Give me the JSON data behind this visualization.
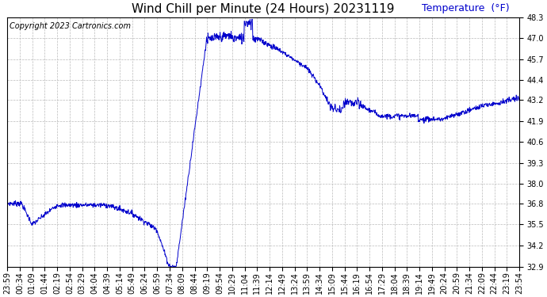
{
  "title": "Wind Chill per Minute (24 Hours) 20231119",
  "ylabel": "Temperature  (°F)",
  "copyright": "Copyright 2023 Cartronics.com",
  "line_color": "#0000cc",
  "bg_color": "#ffffff",
  "grid_color": "#bbbbbb",
  "ylim_min": 32.9,
  "ylim_max": 48.3,
  "yticks": [
    32.9,
    34.2,
    35.5,
    36.8,
    38.0,
    39.3,
    40.6,
    41.9,
    43.2,
    44.4,
    45.7,
    47.0,
    48.3
  ],
  "xtick_labels": [
    "23:59",
    "00:34",
    "01:09",
    "01:44",
    "02:19",
    "02:54",
    "03:29",
    "04:04",
    "04:39",
    "05:14",
    "05:49",
    "06:24",
    "06:59",
    "07:34",
    "08:09",
    "08:44",
    "09:19",
    "09:54",
    "10:29",
    "11:04",
    "11:39",
    "12:14",
    "12:49",
    "13:24",
    "13:59",
    "14:34",
    "15:09",
    "15:44",
    "16:19",
    "16:54",
    "17:29",
    "18:04",
    "18:39",
    "19:14",
    "19:49",
    "20:24",
    "20:59",
    "21:34",
    "22:09",
    "22:44",
    "23:19",
    "23:54"
  ],
  "title_fontsize": 11,
  "ylabel_fontsize": 9,
  "tick_fontsize": 7,
  "copyright_fontsize": 7,
  "ylabel_color": "#0000cc"
}
